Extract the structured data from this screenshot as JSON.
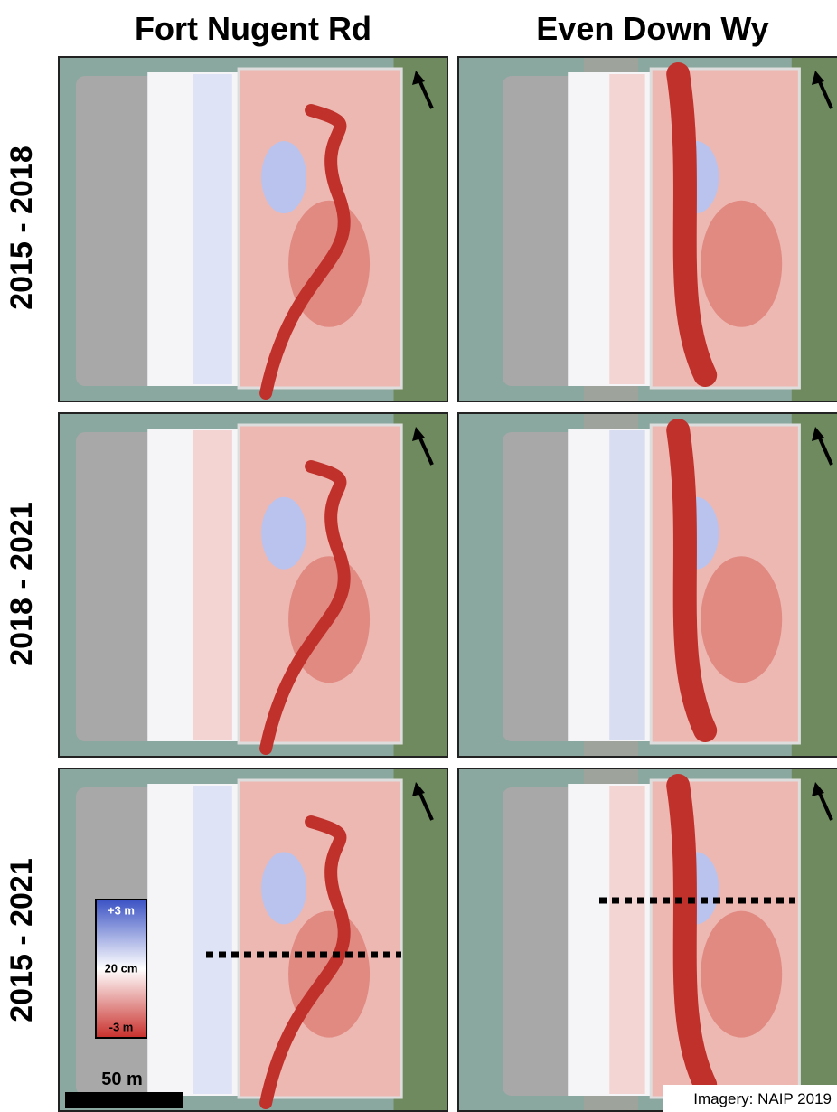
{
  "columns": [
    "Fort Nugent Rd",
    "Even Down Wy"
  ],
  "rows": [
    "2015 - 2018",
    "2018 - 2021",
    "2015 - 2021"
  ],
  "legend": {
    "top": "+3 m",
    "middle": "20 cm",
    "bottom": "-3 m"
  },
  "scale_bar": "50 m",
  "credit": "Imagery: NAIP 2019"
}
